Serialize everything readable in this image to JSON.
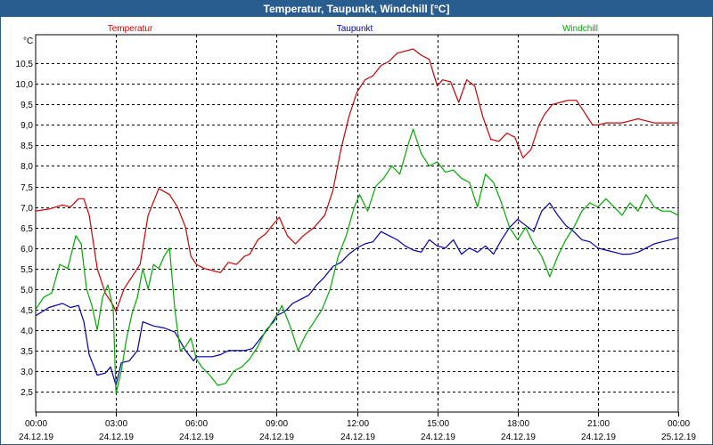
{
  "window": {
    "title": "Temperatur, Taupunkt, Windchill [°C]"
  },
  "chart_data": {
    "type": "line",
    "title": "Temperatur, Taupunkt, Windchill [°C]",
    "ylabel": "°C",
    "ylim": [
      2.0,
      11.2
    ],
    "yticks": [
      "2,5",
      "3,0",
      "3,5",
      "4,0",
      "4,5",
      "5,0",
      "5,5",
      "6,0",
      "6,5",
      "7,0",
      "7,5",
      "8,0",
      "8,5",
      "9,0",
      "9,5",
      "10,0",
      "10,5"
    ],
    "ytick_values": [
      2.5,
      3.0,
      3.5,
      4.0,
      4.5,
      5.0,
      5.5,
      6.0,
      6.5,
      7.0,
      7.5,
      8.0,
      8.5,
      9.0,
      9.5,
      10.0,
      10.5
    ],
    "xlim": [
      0,
      24
    ],
    "xticks": [
      {
        "time": "00:00",
        "date": "24.12.19",
        "h": 0
      },
      {
        "time": "03:00",
        "date": "24.12.19",
        "h": 3
      },
      {
        "time": "06:00",
        "date": "24.12.19",
        "h": 6
      },
      {
        "time": "09:00",
        "date": "24.12.19",
        "h": 9
      },
      {
        "time": "12:00",
        "date": "24.12.19",
        "h": 12
      },
      {
        "time": "15:00",
        "date": "24.12.19",
        "h": 15
      },
      {
        "time": "18:00",
        "date": "24.12.19",
        "h": 18
      },
      {
        "time": "21:00",
        "date": "24.12.19",
        "h": 21
      },
      {
        "time": "00:00",
        "date": "25.12.19",
        "h": 24
      }
    ],
    "grid": true,
    "series": [
      {
        "name": "Temperatur",
        "color": "#cc0000",
        "x": [
          0,
          0.5,
          1,
          1.3,
          1.6,
          1.8,
          2.0,
          2.3,
          2.6,
          2.9,
          3.0,
          3.3,
          3.6,
          3.9,
          4.2,
          4.6,
          5.0,
          5.3,
          5.6,
          5.8,
          6.0,
          6.3,
          6.6,
          6.9,
          7.2,
          7.5,
          7.8,
          8.0,
          8.3,
          8.6,
          8.9,
          9.1,
          9.4,
          9.7,
          10.0,
          10.4,
          10.8,
          11.1,
          11.4,
          11.7,
          12.0,
          12.3,
          12.6,
          12.9,
          13.2,
          13.5,
          13.8,
          14.1,
          14.4,
          14.7,
          15.0,
          15.2,
          15.5,
          15.8,
          16.1,
          16.4,
          16.7,
          17.0,
          17.3,
          17.6,
          17.9,
          18.2,
          18.5,
          18.8,
          19.0,
          19.3,
          19.6,
          19.9,
          20.2,
          20.5,
          20.8,
          21.0,
          21.3,
          21.6,
          21.9,
          22.2,
          22.5,
          22.8,
          23.1,
          23.4,
          23.7,
          24.0
        ],
        "values": [
          6.9,
          6.95,
          7.05,
          7.0,
          7.2,
          7.2,
          6.8,
          5.5,
          4.9,
          4.6,
          4.45,
          5.0,
          5.3,
          5.6,
          6.8,
          7.45,
          7.3,
          7.0,
          6.5,
          5.8,
          5.6,
          5.5,
          5.45,
          5.4,
          5.65,
          5.6,
          5.8,
          5.85,
          6.2,
          6.35,
          6.6,
          6.75,
          6.3,
          6.1,
          6.3,
          6.5,
          6.8,
          7.4,
          8.4,
          9.2,
          9.8,
          10.1,
          10.2,
          10.45,
          10.55,
          10.75,
          10.8,
          10.85,
          10.7,
          10.6,
          9.95,
          10.1,
          10.05,
          9.55,
          10.1,
          9.95,
          9.2,
          8.65,
          8.6,
          8.8,
          8.7,
          8.2,
          8.4,
          9.0,
          9.25,
          9.5,
          9.55,
          9.6,
          9.6,
          9.3,
          9.0,
          9.0,
          9.05,
          9.05,
          9.05,
          9.1,
          9.15,
          9.1,
          9.05,
          9.05,
          9.05,
          9.05
        ]
      },
      {
        "name": "Taupunkt",
        "color": "#0000aa",
        "x": [
          0,
          0.5,
          1,
          1.3,
          1.6,
          1.8,
          2.0,
          2.3,
          2.6,
          2.8,
          3.0,
          3.2,
          3.5,
          3.8,
          4.0,
          4.4,
          4.8,
          5.2,
          5.6,
          5.9,
          6.0,
          6.3,
          6.6,
          6.9,
          7.2,
          7.5,
          7.8,
          8.1,
          8.4,
          8.7,
          9.0,
          9.3,
          9.6,
          9.9,
          10.2,
          10.5,
          10.8,
          11.1,
          11.4,
          11.7,
          12.0,
          12.3,
          12.6,
          12.9,
          13.2,
          13.5,
          13.8,
          14.1,
          14.4,
          14.7,
          15.0,
          15.3,
          15.6,
          15.9,
          16.2,
          16.5,
          16.8,
          17.1,
          17.4,
          17.7,
          18.0,
          18.3,
          18.6,
          18.9,
          19.2,
          19.5,
          19.8,
          20.1,
          20.4,
          20.7,
          21.0,
          21.3,
          21.6,
          21.9,
          22.2,
          22.5,
          22.8,
          23.1,
          23.4,
          23.7,
          24.0
        ],
        "values": [
          4.35,
          4.55,
          4.65,
          4.55,
          4.6,
          4.2,
          3.4,
          2.9,
          2.95,
          3.1,
          2.65,
          3.2,
          3.25,
          3.5,
          4.2,
          4.1,
          4.05,
          3.95,
          3.5,
          3.25,
          3.35,
          3.35,
          3.35,
          3.4,
          3.5,
          3.5,
          3.5,
          3.55,
          3.8,
          4.05,
          4.35,
          4.45,
          4.65,
          4.75,
          4.85,
          5.1,
          5.3,
          5.55,
          5.65,
          5.85,
          6.0,
          6.1,
          6.15,
          6.4,
          6.3,
          6.2,
          6.05,
          5.95,
          5.9,
          6.2,
          6.05,
          6.0,
          6.2,
          5.85,
          6.0,
          5.9,
          6.05,
          5.85,
          6.2,
          6.5,
          6.7,
          6.55,
          6.4,
          6.9,
          7.1,
          6.8,
          6.55,
          6.4,
          6.2,
          6.15,
          6.0,
          5.95,
          5.9,
          5.85,
          5.85,
          5.9,
          6.0,
          6.1,
          6.15,
          6.2,
          6.25
        ]
      },
      {
        "name": "Windchill",
        "color": "#00aa00",
        "x": [
          0,
          0.3,
          0.6,
          0.9,
          1.2,
          1.5,
          1.7,
          1.9,
          2.1,
          2.3,
          2.5,
          2.7,
          2.9,
          3.0,
          3.2,
          3.4,
          3.6,
          3.8,
          4.0,
          4.2,
          4.4,
          4.6,
          4.8,
          5.0,
          5.2,
          5.4,
          5.6,
          5.8,
          6.0,
          6.2,
          6.5,
          6.8,
          7.1,
          7.4,
          7.7,
          8.0,
          8.3,
          8.6,
          8.9,
          9.2,
          9.5,
          9.8,
          10.1,
          10.4,
          10.7,
          11.0,
          11.3,
          11.6,
          11.9,
          12.1,
          12.4,
          12.7,
          13.0,
          13.3,
          13.6,
          13.9,
          14.1,
          14.4,
          14.7,
          15.0,
          15.3,
          15.6,
          15.9,
          16.2,
          16.5,
          16.8,
          17.1,
          17.4,
          17.7,
          18.0,
          18.3,
          18.6,
          18.9,
          19.2,
          19.5,
          19.8,
          20.1,
          20.4,
          20.7,
          21.0,
          21.3,
          21.6,
          21.9,
          22.2,
          22.5,
          22.8,
          23.1,
          23.4,
          23.7,
          24.0
        ],
        "values": [
          4.5,
          4.8,
          4.9,
          5.6,
          5.5,
          6.3,
          6.1,
          5.0,
          4.6,
          4.0,
          4.8,
          5.1,
          4.5,
          2.45,
          3.0,
          3.8,
          4.4,
          4.8,
          5.5,
          5.0,
          5.6,
          5.5,
          5.8,
          6.0,
          4.5,
          3.5,
          3.6,
          3.8,
          3.3,
          3.1,
          2.9,
          2.65,
          2.7,
          3.0,
          3.1,
          3.3,
          3.6,
          4.0,
          4.2,
          4.6,
          4.1,
          3.5,
          3.9,
          4.2,
          4.5,
          5.0,
          5.8,
          6.3,
          7.0,
          7.3,
          6.9,
          7.5,
          7.7,
          8.0,
          7.8,
          8.5,
          8.9,
          8.3,
          8.0,
          8.1,
          7.85,
          7.9,
          7.7,
          7.6,
          7.0,
          7.8,
          7.6,
          7.1,
          6.5,
          6.2,
          6.5,
          6.1,
          5.8,
          5.3,
          5.8,
          6.2,
          6.5,
          6.9,
          7.1,
          7.0,
          7.2,
          7.0,
          6.8,
          7.1,
          6.9,
          7.3,
          7.0,
          6.9,
          6.9,
          6.8
        ]
      }
    ]
  }
}
